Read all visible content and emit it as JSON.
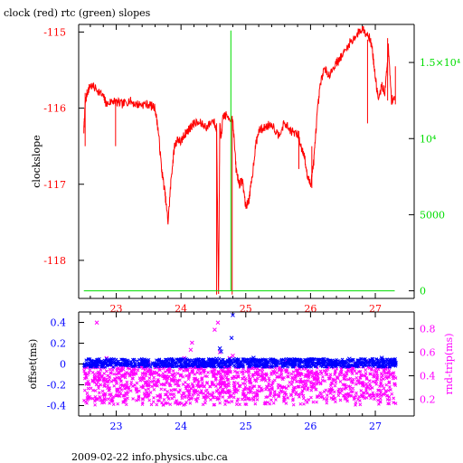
{
  "title": "clock (red) rtc (green) slopes",
  "footer": "2009-02-22 info.physics.ubc.ca",
  "colors": {
    "red": "#ff0000",
    "green": "#00dd00",
    "blue": "#0000ff",
    "magenta": "#ff00ff",
    "axis": "#000000"
  },
  "chart_data": [
    {
      "type": "line",
      "title": "clock (red) rtc (green) slopes",
      "xlabel": "",
      "ylabel": "clockslope",
      "y2label": "",
      "x_ticks": [
        23,
        24,
        25,
        26,
        27
      ],
      "x_tick_labels": [
        "23",
        "24",
        "25",
        "26",
        "27"
      ],
      "xlim": [
        22.42,
        27.6
      ],
      "ylim": [
        -118.5,
        -114.9
      ],
      "y_ticks": [
        -118,
        -117,
        -116,
        -115
      ],
      "y_tick_labels": [
        "-118",
        "-117",
        "-116",
        "-115"
      ],
      "y2lim": [
        -500,
        17500
      ],
      "y2_ticks": [
        0,
        5000,
        10000,
        15000
      ],
      "y2_tick_labels": [
        "0",
        "5000",
        "10⁴",
        "1.5×10⁴"
      ],
      "series": [
        {
          "axis": "left",
          "color": "#ff0000",
          "x": [
            22.5,
            22.52,
            22.55,
            22.6,
            22.7,
            22.8,
            22.85,
            22.95,
            23.0,
            23.1,
            23.2,
            23.3,
            23.4,
            23.5,
            23.6,
            23.65,
            23.7,
            23.75,
            23.8,
            23.85,
            23.9,
            23.95,
            24.0,
            24.05,
            24.1,
            24.15,
            24.2,
            24.3,
            24.4,
            24.5,
            24.55,
            24.58,
            24.6,
            24.62,
            24.65,
            24.7,
            24.8,
            24.85,
            24.9,
            24.95,
            25.0,
            25.05,
            25.1,
            25.15,
            25.2,
            25.3,
            25.4,
            25.5,
            25.6,
            25.7,
            25.8,
            25.85,
            25.9,
            25.95,
            26.0,
            26.05,
            26.1,
            26.15,
            26.2,
            26.3,
            26.4,
            26.5,
            26.6,
            26.7,
            26.8,
            26.85,
            26.9,
            26.95,
            27.0,
            27.05,
            27.1,
            27.15,
            27.2,
            27.25,
            27.3
          ],
          "y": [
            -116.3,
            -115.95,
            -115.8,
            -115.7,
            -115.75,
            -115.85,
            -115.95,
            -115.9,
            -115.92,
            -115.95,
            -115.9,
            -115.95,
            -115.95,
            -115.95,
            -116.0,
            -116.3,
            -116.8,
            -117.1,
            -117.5,
            -116.9,
            -116.5,
            -116.4,
            -116.45,
            -116.35,
            -116.3,
            -116.25,
            -116.2,
            -116.2,
            -116.25,
            -116.15,
            -116.3,
            -118.45,
            -116.2,
            -116.4,
            -116.1,
            -116.1,
            -116.15,
            -116.8,
            -117.0,
            -116.95,
            -117.3,
            -117.2,
            -116.9,
            -116.5,
            -116.3,
            -116.25,
            -116.2,
            -116.35,
            -116.2,
            -116.3,
            -116.35,
            -116.5,
            -116.6,
            -116.9,
            -117.0,
            -116.7,
            -116.1,
            -115.7,
            -115.5,
            -115.55,
            -115.4,
            -115.3,
            -115.15,
            -115.05,
            -114.95,
            -115.0,
            -115.05,
            -115.2,
            -115.6,
            -115.9,
            -115.7,
            -115.8,
            -115.2,
            -115.9,
            -115.85
          ],
          "spikes": [
            {
              "x": 22.52,
              "y": [
                -116.5,
                -115.8
              ]
            },
            {
              "x": 22.99,
              "y": [
                -116.5,
                -115.9
              ]
            },
            {
              "x": 24.55,
              "y": [
                -118.45,
                -116.2
              ]
            },
            {
              "x": 24.79,
              "y": [
                -118.45,
                -116.1
              ]
            },
            {
              "x": 25.82,
              "y": [
                -116.8,
                -116.3
              ]
            },
            {
              "x": 26.02,
              "y": [
                -117.05,
                -116.5
              ]
            },
            {
              "x": 26.88,
              "y": [
                -116.2,
                -115.1
              ]
            },
            {
              "x": 27.19,
              "y": [
                -115.9,
                -115.08
              ]
            },
            {
              "x": 27.31,
              "y": [
                -115.95,
                -115.45
              ]
            }
          ]
        },
        {
          "axis": "right",
          "color": "#00dd00",
          "x": [
            22.5,
            27.3
          ],
          "y": [
            0,
            0
          ],
          "spikes": [
            {
              "x": 24.77,
              "y": [
                0,
                17100
              ]
            }
          ]
        }
      ]
    },
    {
      "type": "scatter",
      "xlabel": "",
      "ylabel": "offset(ms)",
      "y2label": "rnd-trip(ms)",
      "x_ticks": [
        23,
        24,
        25,
        26,
        27
      ],
      "x_tick_labels": [
        "23",
        "24",
        "25",
        "26",
        "27"
      ],
      "xlim": [
        22.42,
        27.6
      ],
      "ylim": [
        -0.5,
        0.5
      ],
      "y_ticks": [
        -0.4,
        -0.2,
        0,
        0.2,
        0.4
      ],
      "y_tick_labels": [
        "-0.4",
        "-0.2",
        "0",
        "0.2",
        "0.4"
      ],
      "y2lim": [
        0.06,
        0.94
      ],
      "y2_ticks": [
        0.2,
        0.4,
        0.6,
        0.8
      ],
      "y2_tick_labels": [
        "0.2",
        "0.4",
        "0.6",
        "0.8"
      ],
      "series": [
        {
          "axis": "left",
          "color": "#0000ff",
          "marker": "x",
          "band": [
            -0.03,
            0.05
          ],
          "points": [
            [
              24.6,
              0.15
            ],
            [
              24.62,
              0.12
            ],
            [
              24.8,
              0.47
            ],
            [
              24.78,
              0.25
            ],
            [
              24.55,
              0.05
            ],
            [
              25.12,
              0.06
            ],
            [
              23.75,
              -0.02
            ],
            [
              26.6,
              0.05
            ],
            [
              27.1,
              0.06
            ]
          ]
        },
        {
          "axis": "right",
          "color": "#ff00ff",
          "marker": "x",
          "band": [
            0.15,
            0.48
          ],
          "points": [
            [
              22.7,
              0.85
            ],
            [
              22.85,
              0.55
            ],
            [
              24.57,
              0.85
            ],
            [
              24.6,
              0.6
            ],
            [
              24.75,
              0.55
            ],
            [
              24.8,
              0.57
            ],
            [
              24.15,
              0.62
            ],
            [
              24.17,
              0.68
            ],
            [
              24.05,
              0.55
            ],
            [
              23.5,
              0.51
            ],
            [
              25.6,
              0.52
            ],
            [
              26.7,
              0.5
            ],
            [
              26.9,
              0.52
            ],
            [
              24.52,
              0.79
            ]
          ]
        }
      ]
    }
  ]
}
